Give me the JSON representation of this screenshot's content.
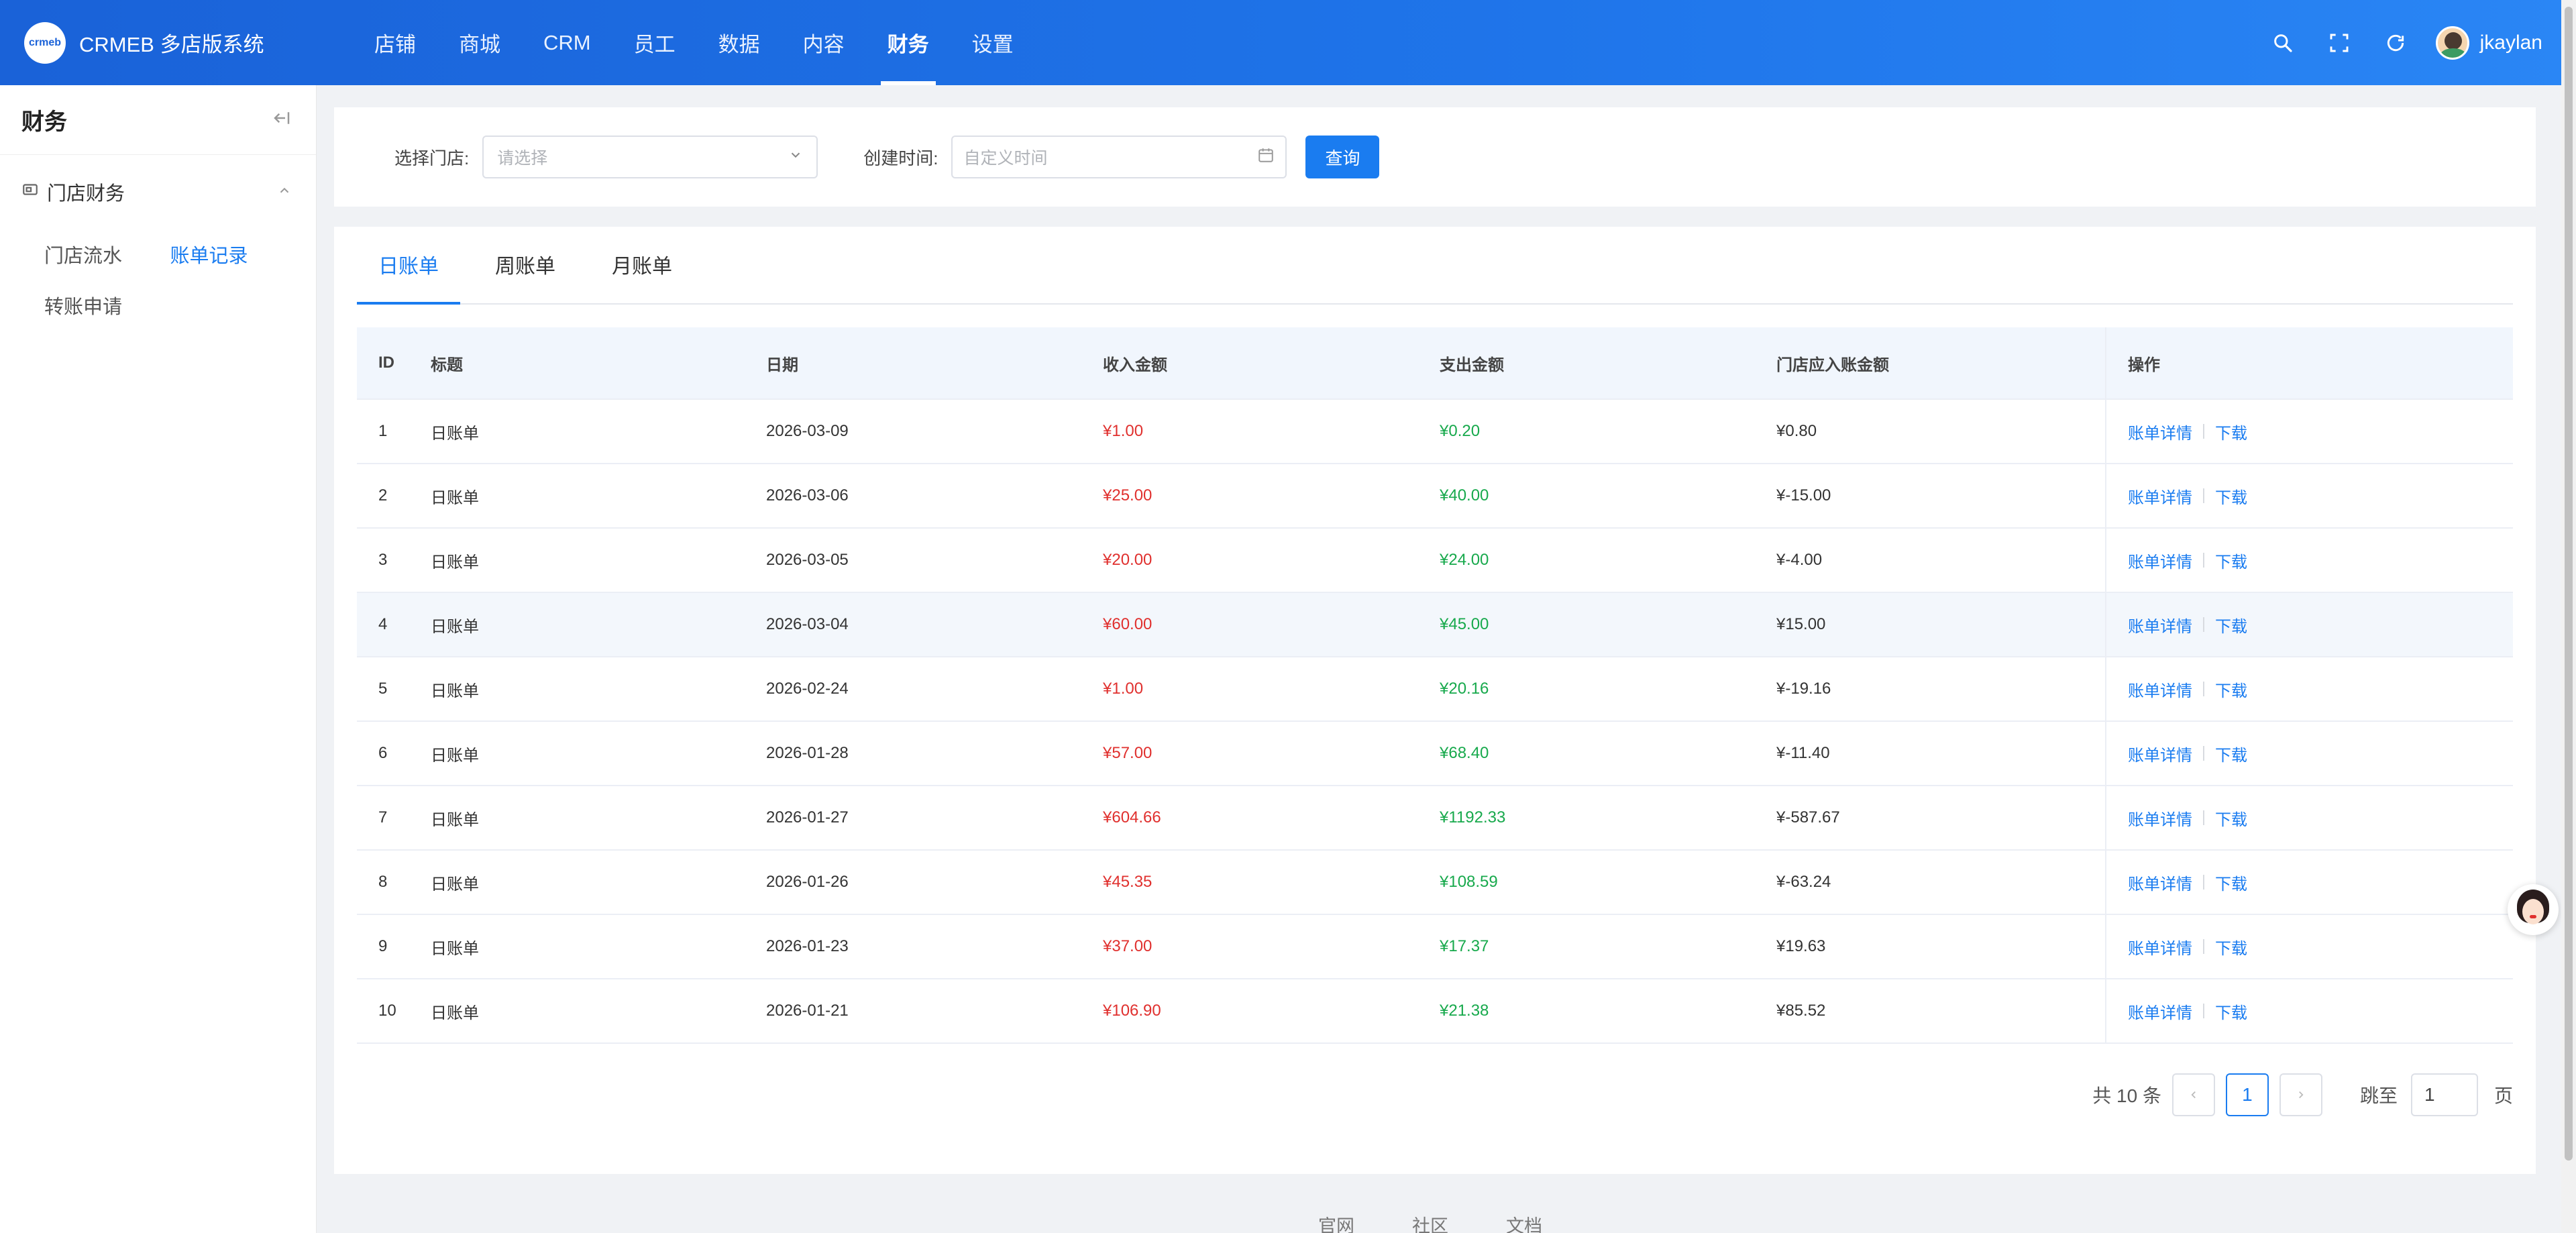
{
  "header": {
    "logo_badge": "crmeb",
    "app_title": "CRMEB 多店版系统",
    "nav": [
      "店铺",
      "商城",
      "CRM",
      "员工",
      "数据",
      "内容",
      "财务",
      "设置"
    ],
    "active_nav": "财务",
    "username": "jkaylan"
  },
  "sidebar": {
    "title": "财务",
    "group_label": "门店财务",
    "items": [
      "门店流水",
      "账单记录",
      "转账申请"
    ],
    "active_item": "账单记录"
  },
  "filter": {
    "store_label": "选择门店:",
    "store_placeholder": "请选择",
    "time_label": "创建时间:",
    "time_placeholder": "自定义时间",
    "query_button": "查询"
  },
  "tabs": [
    "日账单",
    "周账单",
    "月账单"
  ],
  "table": {
    "headers": [
      "ID",
      "标题",
      "日期",
      "收入金额",
      "支出金额",
      "门店应入账金额",
      "操作"
    ],
    "op_detail": "账单详情",
    "op_download": "下载",
    "rows": [
      {
        "id": "1",
        "title": "日账单",
        "date": "2026-03-09",
        "income": "¥1.00",
        "expense": "¥0.20",
        "net": "¥0.80"
      },
      {
        "id": "2",
        "title": "日账单",
        "date": "2026-03-06",
        "income": "¥25.00",
        "expense": "¥40.00",
        "net": "¥-15.00"
      },
      {
        "id": "3",
        "title": "日账单",
        "date": "2026-03-05",
        "income": "¥20.00",
        "expense": "¥24.00",
        "net": "¥-4.00"
      },
      {
        "id": "4",
        "title": "日账单",
        "date": "2026-03-04",
        "income": "¥60.00",
        "expense": "¥45.00",
        "net": "¥15.00"
      },
      {
        "id": "5",
        "title": "日账单",
        "date": "2026-02-24",
        "income": "¥1.00",
        "expense": "¥20.16",
        "net": "¥-19.16"
      },
      {
        "id": "6",
        "title": "日账单",
        "date": "2026-01-28",
        "income": "¥57.00",
        "expense": "¥68.40",
        "net": "¥-11.40"
      },
      {
        "id": "7",
        "title": "日账单",
        "date": "2026-01-27",
        "income": "¥604.66",
        "expense": "¥1192.33",
        "net": "¥-587.67"
      },
      {
        "id": "8",
        "title": "日账单",
        "date": "2026-01-26",
        "income": "¥45.35",
        "expense": "¥108.59",
        "net": "¥-63.24"
      },
      {
        "id": "9",
        "title": "日账单",
        "date": "2026-01-23",
        "income": "¥37.00",
        "expense": "¥17.37",
        "net": "¥19.63"
      },
      {
        "id": "10",
        "title": "日账单",
        "date": "2026-01-21",
        "income": "¥106.90",
        "expense": "¥21.38",
        "net": "¥85.52"
      }
    ]
  },
  "pagination": {
    "total_text": "共 10 条",
    "current_page": "1",
    "jump_label": "跳至",
    "jump_value": "1",
    "page_suffix": "页"
  },
  "footer": {
    "links": [
      "官网",
      "社区",
      "文档"
    ]
  },
  "colors": {
    "primary": "#1a7cf0",
    "income": "#e0302e",
    "expense": "#17a94c"
  }
}
